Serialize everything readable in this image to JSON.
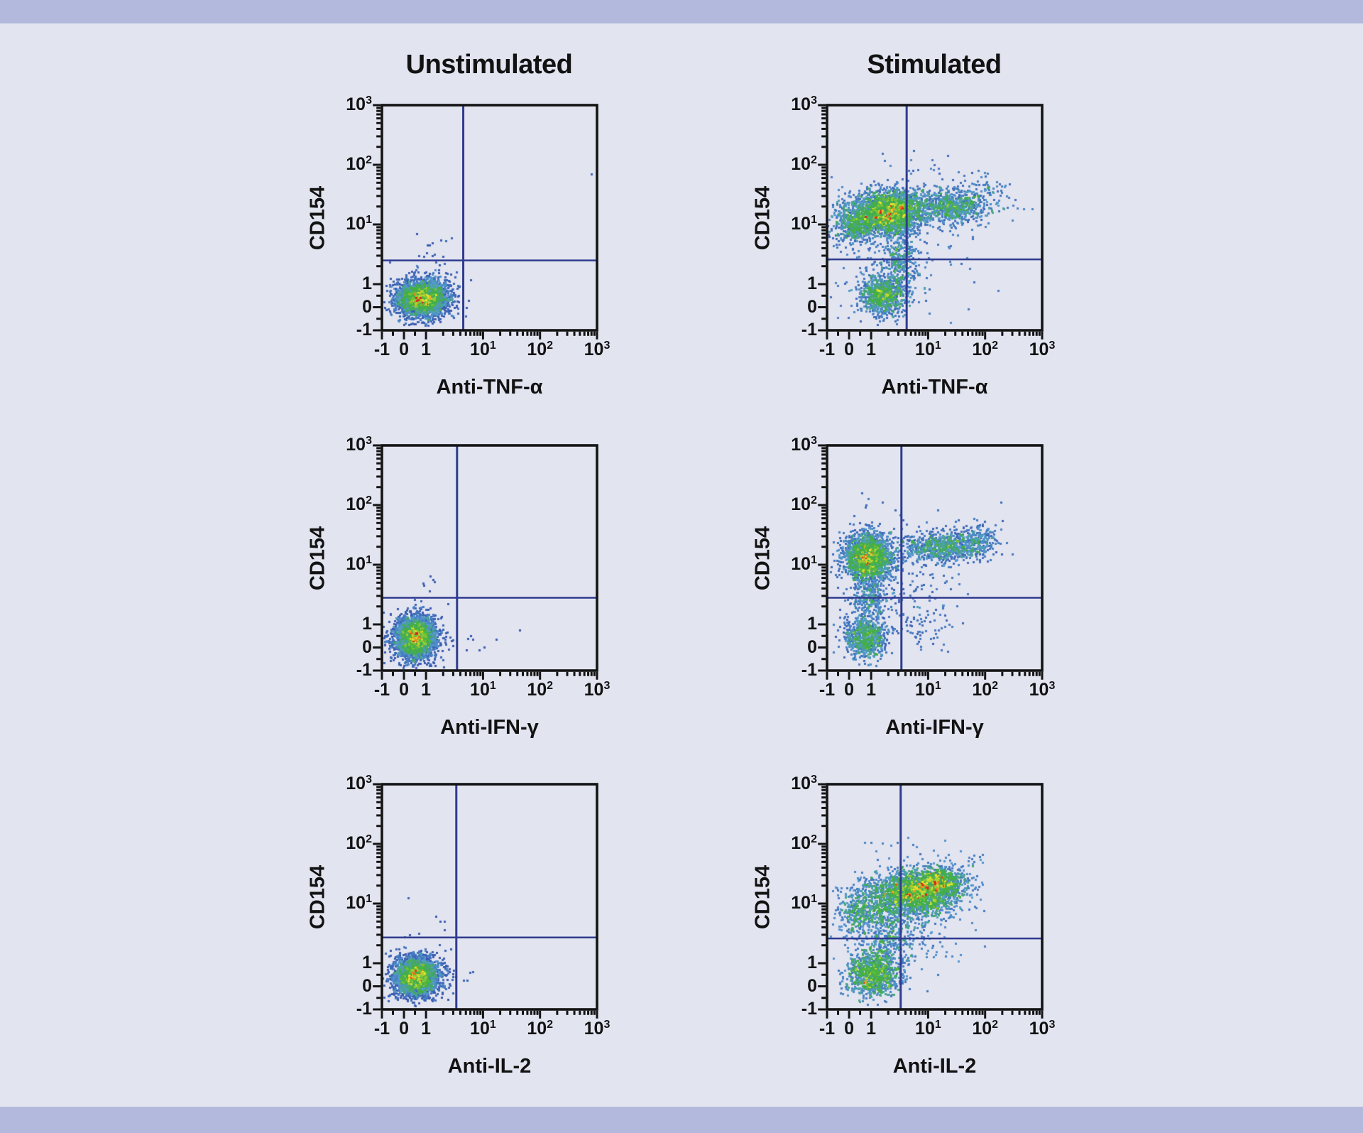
{
  "figure": {
    "background": "#e2e4f0",
    "band_color": "#b2b9dc",
    "frame_color": "#141414",
    "gate_color": "#2f3b8f",
    "text_color": "#121212",
    "columns": [
      {
        "title": "Unstimulated"
      },
      {
        "title": "Stimulated"
      }
    ],
    "y_axis_label": "CD154"
  },
  "axis": {
    "scale": "biexponential",
    "range": [
      -1,
      1000
    ],
    "linear_fraction": 0.205,
    "decade_fraction": 0.265,
    "tick_labels": [
      {
        "v": -1,
        "text": "-1"
      },
      {
        "v": 0,
        "text": "0"
      },
      {
        "v": 1,
        "text": "1"
      },
      {
        "v": 10,
        "text": "10",
        "sup": "1"
      },
      {
        "v": 100,
        "text": "10",
        "sup": "2"
      },
      {
        "v": 1000,
        "text": "10",
        "sup": "3"
      }
    ],
    "minor_ticks": [
      -0.5,
      0.5,
      2,
      3,
      4,
      5,
      6,
      7,
      8,
      9,
      20,
      30,
      40,
      50,
      60,
      70,
      80,
      90,
      200,
      300,
      400,
      500,
      600,
      700,
      800,
      900
    ]
  },
  "palette": {
    "description": "flow-cytometry pseudocolor density ramp, low to high",
    "stops": [
      {
        "t": 0.0,
        "color": "#2c3f9b"
      },
      {
        "t": 0.18,
        "color": "#3a5fb3"
      },
      {
        "t": 0.36,
        "color": "#569dd2"
      },
      {
        "t": 0.5,
        "color": "#41a958"
      },
      {
        "t": 0.66,
        "color": "#44b33c"
      },
      {
        "t": 0.8,
        "color": "#9dcd35"
      },
      {
        "t": 0.89,
        "color": "#ece72f"
      },
      {
        "t": 0.955,
        "color": "#ec8c1c"
      },
      {
        "t": 1.0,
        "color": "#d52b1e"
      }
    ]
  },
  "chart_data": [
    {
      "id": "unstimulated-anti-tnf-alpha",
      "type": "scatter",
      "condition": "Unstimulated",
      "x_label": "Anti-TNF-α",
      "y_label": "CD154",
      "x_range": [
        -1,
        1000
      ],
      "y_range": [
        -1,
        1000
      ],
      "scale": "biexponential",
      "quadrant_gate": {
        "x": 4.5,
        "y": 2.5
      },
      "populations": [
        {
          "name": "cd154neg-tnfneg-core",
          "cx": 0.8,
          "cy": 0.35,
          "sx": 0.056,
          "sy": 0.036,
          "n": 2800
        },
        {
          "name": "cd154neg-tnfneg-halo",
          "cx": 0.8,
          "cy": 0.35,
          "sx": 0.075,
          "sy": 0.055,
          "n": 550
        },
        {
          "name": "sparse-above",
          "cx": 1.2,
          "cy": 4.0,
          "sx": 0.05,
          "sy": 0.035,
          "n": 14
        },
        {
          "name": "outlier-top-right",
          "cx": 850,
          "cy": 70,
          "sx": 0.002,
          "sy": 0.002,
          "n": 1
        }
      ]
    },
    {
      "id": "stimulated-anti-tnf-alpha",
      "type": "scatter",
      "condition": "Stimulated",
      "x_label": "Anti-TNF-α",
      "y_label": "CD154",
      "x_range": [
        -1,
        1000
      ],
      "y_range": [
        -1,
        1000
      ],
      "scale": "biexponential",
      "quadrant_gate": {
        "x": 4.2,
        "y": 2.6
      },
      "populations": [
        {
          "name": "cd154pos-main",
          "cx": 2.2,
          "cy": 16,
          "sx": 0.075,
          "sy": 0.05,
          "n": 2300
        },
        {
          "name": "cd154pos-left",
          "cx": 0.2,
          "cy": 11,
          "sx": 0.055,
          "sy": 0.05,
          "n": 600
        },
        {
          "name": "tnfpos-arm",
          "cx": 25,
          "cy": 20,
          "sx": 0.085,
          "sy": 0.035,
          "n": 650
        },
        {
          "name": "tnfpos-far-scatter",
          "cx": 70,
          "cy": 28,
          "sx": 0.09,
          "sy": 0.06,
          "n": 160
        },
        {
          "name": "cd154neg-lower",
          "cx": 1.6,
          "cy": 0.5,
          "sx": 0.055,
          "sy": 0.045,
          "n": 850
        },
        {
          "name": "bridge",
          "cx": 3.0,
          "cy": 2.6,
          "sx": 0.035,
          "sy": 0.06,
          "n": 260
        },
        {
          "name": "diffuse-scatter",
          "cx": 2.5,
          "cy": 4.0,
          "sx": 0.17,
          "sy": 0.15,
          "n": 240
        },
        {
          "name": "top-outliers",
          "cx": 8,
          "cy": 110,
          "sx": 0.12,
          "sy": 0.025,
          "n": 10
        }
      ]
    },
    {
      "id": "unstimulated-anti-ifn-gamma",
      "type": "scatter",
      "condition": "Unstimulated",
      "x_label": "Anti-IFN-γ",
      "y_label": "CD154",
      "x_range": [
        -1,
        1000
      ],
      "y_range": [
        -1,
        1000
      ],
      "scale": "biexponential",
      "quadrant_gate": {
        "x": 3.5,
        "y": 2.8
      },
      "populations": [
        {
          "name": "cd154neg-ifnneg-core",
          "cx": 0.5,
          "cy": 0.4,
          "sx": 0.045,
          "sy": 0.043,
          "n": 3000
        },
        {
          "name": "cd154neg-ifnneg-halo",
          "cx": 0.5,
          "cy": 0.4,
          "sx": 0.062,
          "sy": 0.058,
          "n": 520
        },
        {
          "name": "sparse-above",
          "cx": 1.3,
          "cy": 5.2,
          "sx": 0.035,
          "sy": 0.022,
          "n": 5
        },
        {
          "name": "sparse-right",
          "cx": 7,
          "cy": 0.6,
          "sx": 0.04,
          "sy": 0.035,
          "n": 7
        },
        {
          "name": "outlier-right",
          "cx": 45,
          "cy": 0.7,
          "sx": 0.002,
          "sy": 0.002,
          "n": 1
        }
      ]
    },
    {
      "id": "stimulated-anti-ifn-gamma",
      "type": "scatter",
      "condition": "Stimulated",
      "x_label": "Anti-IFN-γ",
      "y_label": "CD154",
      "x_range": [
        -1,
        1000
      ],
      "y_range": [
        -1,
        1000
      ],
      "scale": "biexponential",
      "quadrant_gate": {
        "x": 3.4,
        "y": 2.8
      },
      "populations": [
        {
          "name": "cd154pos-main",
          "cx": 0.8,
          "cy": 13,
          "sx": 0.055,
          "sy": 0.052,
          "n": 2100
        },
        {
          "name": "ifnpos-arm",
          "cx": 18,
          "cy": 20,
          "sx": 0.1,
          "sy": 0.032,
          "n": 800
        },
        {
          "name": "ifnpos-far-scatter",
          "cx": 70,
          "cy": 26,
          "sx": 0.06,
          "sy": 0.04,
          "n": 200
        },
        {
          "name": "cd154neg-lower",
          "cx": 0.7,
          "cy": 0.4,
          "sx": 0.048,
          "sy": 0.045,
          "n": 800
        },
        {
          "name": "bridge",
          "cx": 0.8,
          "cy": 2.6,
          "sx": 0.042,
          "sy": 0.05,
          "n": 260
        },
        {
          "name": "diffuse-scatter",
          "cx": 3,
          "cy": 5,
          "sx": 0.15,
          "sy": 0.13,
          "n": 200
        },
        {
          "name": "lower-right-sparse",
          "cx": 9,
          "cy": 0.9,
          "sx": 0.08,
          "sy": 0.05,
          "n": 45
        },
        {
          "name": "top-outliers",
          "cx": 0.9,
          "cy": 125,
          "sx": 0.04,
          "sy": 0.018,
          "n": 5
        },
        {
          "name": "outlier-top-right",
          "cx": 200,
          "cy": 110,
          "sx": 0.002,
          "sy": 0.002,
          "n": 1
        }
      ]
    },
    {
      "id": "unstimulated-anti-il-2",
      "type": "scatter",
      "condition": "Unstimulated",
      "x_label": "Anti-IL-2",
      "y_label": "CD154",
      "x_range": [
        -1,
        1000
      ],
      "y_range": [
        -1,
        1000
      ],
      "scale": "biexponential",
      "quadrant_gate": {
        "x": 3.4,
        "y": 2.7
      },
      "populations": [
        {
          "name": "cd154neg-il2neg-core",
          "cx": 0.55,
          "cy": 0.4,
          "sx": 0.05,
          "sy": 0.04,
          "n": 2900
        },
        {
          "name": "cd154neg-il2neg-halo",
          "cx": 0.55,
          "cy": 0.4,
          "sx": 0.068,
          "sy": 0.055,
          "n": 520
        },
        {
          "name": "outlier-above",
          "cx": 0.15,
          "cy": 12,
          "sx": 0.002,
          "sy": 0.002,
          "n": 1
        },
        {
          "name": "sparse-above",
          "cx": 1.7,
          "cy": 5.3,
          "sx": 0.03,
          "sy": 0.02,
          "n": 4
        },
        {
          "name": "sparse-right",
          "cx": 5,
          "cy": 0.4,
          "sx": 0.03,
          "sy": 0.03,
          "n": 5
        }
      ]
    },
    {
      "id": "stimulated-anti-il-2",
      "type": "scatter",
      "condition": "Stimulated",
      "x_label": "Anti-IL-2",
      "y_label": "CD154",
      "x_range": [
        -1,
        1000
      ],
      "y_range": [
        -1,
        1000
      ],
      "scale": "biexponential",
      "quadrant_gate": {
        "x": 3.3,
        "y": 2.6
      },
      "populations": [
        {
          "name": "cd154pos-band",
          "cx": 6,
          "cy": 15,
          "sx": 0.1,
          "sy": 0.048,
          "n": 2000
        },
        {
          "name": "double-pos-tip",
          "cx": 16,
          "cy": 24,
          "sx": 0.055,
          "sy": 0.032,
          "n": 650
        },
        {
          "name": "cd154pos-left",
          "cx": 0.6,
          "cy": 8,
          "sx": 0.06,
          "sy": 0.06,
          "n": 420
        },
        {
          "name": "cd154neg-lower",
          "cx": 1.1,
          "cy": 0.5,
          "sx": 0.06,
          "sy": 0.05,
          "n": 1000
        },
        {
          "name": "bridge",
          "cx": 2.2,
          "cy": 3,
          "sx": 0.07,
          "sy": 0.07,
          "n": 330
        },
        {
          "name": "diffuse-scatter",
          "cx": 4,
          "cy": 4,
          "sx": 0.16,
          "sy": 0.12,
          "n": 200
        },
        {
          "name": "right-outliers",
          "cx": 55,
          "cy": 40,
          "sx": 0.05,
          "sy": 0.045,
          "n": 18
        },
        {
          "name": "top-outliers",
          "cx": 3.5,
          "cy": 85,
          "sx": 0.09,
          "sy": 0.025,
          "n": 12
        }
      ]
    }
  ]
}
